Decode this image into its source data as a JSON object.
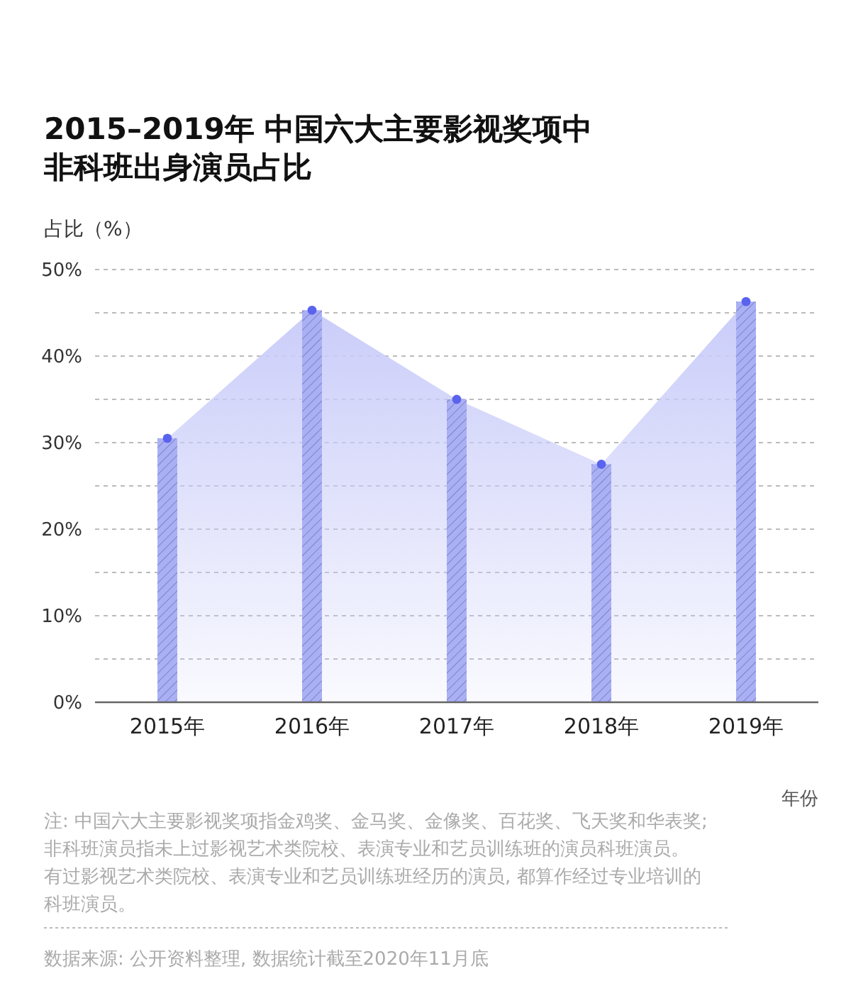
{
  "chart_data": {
    "type": "bar",
    "title": "2015–2019年 中国六大主要影视奖项中非科班出身演员占比",
    "ylabel": "占比（%）",
    "xlabel": "年份",
    "categories": [
      "2015年",
      "2016年",
      "2017年",
      "2018年",
      "2019年"
    ],
    "series": [
      {
        "color": "#aab0f6",
        "values": [
          30.5,
          45.3,
          35.0,
          27.5,
          46.3
        ]
      },
      {
        "type": "area",
        "color": "#c9ccf9",
        "values": [
          30.5,
          45.3,
          35.0,
          27.5,
          46.3
        ]
      }
    ],
    "marker": "circle",
    "ylim": [
      0,
      50
    ],
    "yticks": [
      {
        "value": 0,
        "label": "0%"
      },
      {
        "value": 5,
        "label": null
      },
      {
        "value": 10,
        "label": "10%"
      },
      {
        "value": 15,
        "label": null
      },
      {
        "value": 20,
        "label": "20%"
      },
      {
        "value": 25,
        "label": null
      },
      {
        "value": 30,
        "label": "30%"
      },
      {
        "value": 35,
        "label": null
      },
      {
        "value": 40,
        "label": "40%"
      },
      {
        "value": 45,
        "label": null
      },
      {
        "value": 50,
        "label": "50%"
      }
    ],
    "grid": "y",
    "annotations": [
      "注: 中国六大主要影视奖项指金鸡奖、金马奖、金像奖、百花奖、飞天奖和华表奖; 非科班演员指未上过影视艺术类院校、表演专业和艺员训练班的演员科班演员。有过影视艺术类院校、表演专业和艺员训练班经历的演员, 都算作经过专业培训的科班演员。",
      "数据来源: 公开资料整理, 数据统计截至2020年11月底"
    ]
  }
}
